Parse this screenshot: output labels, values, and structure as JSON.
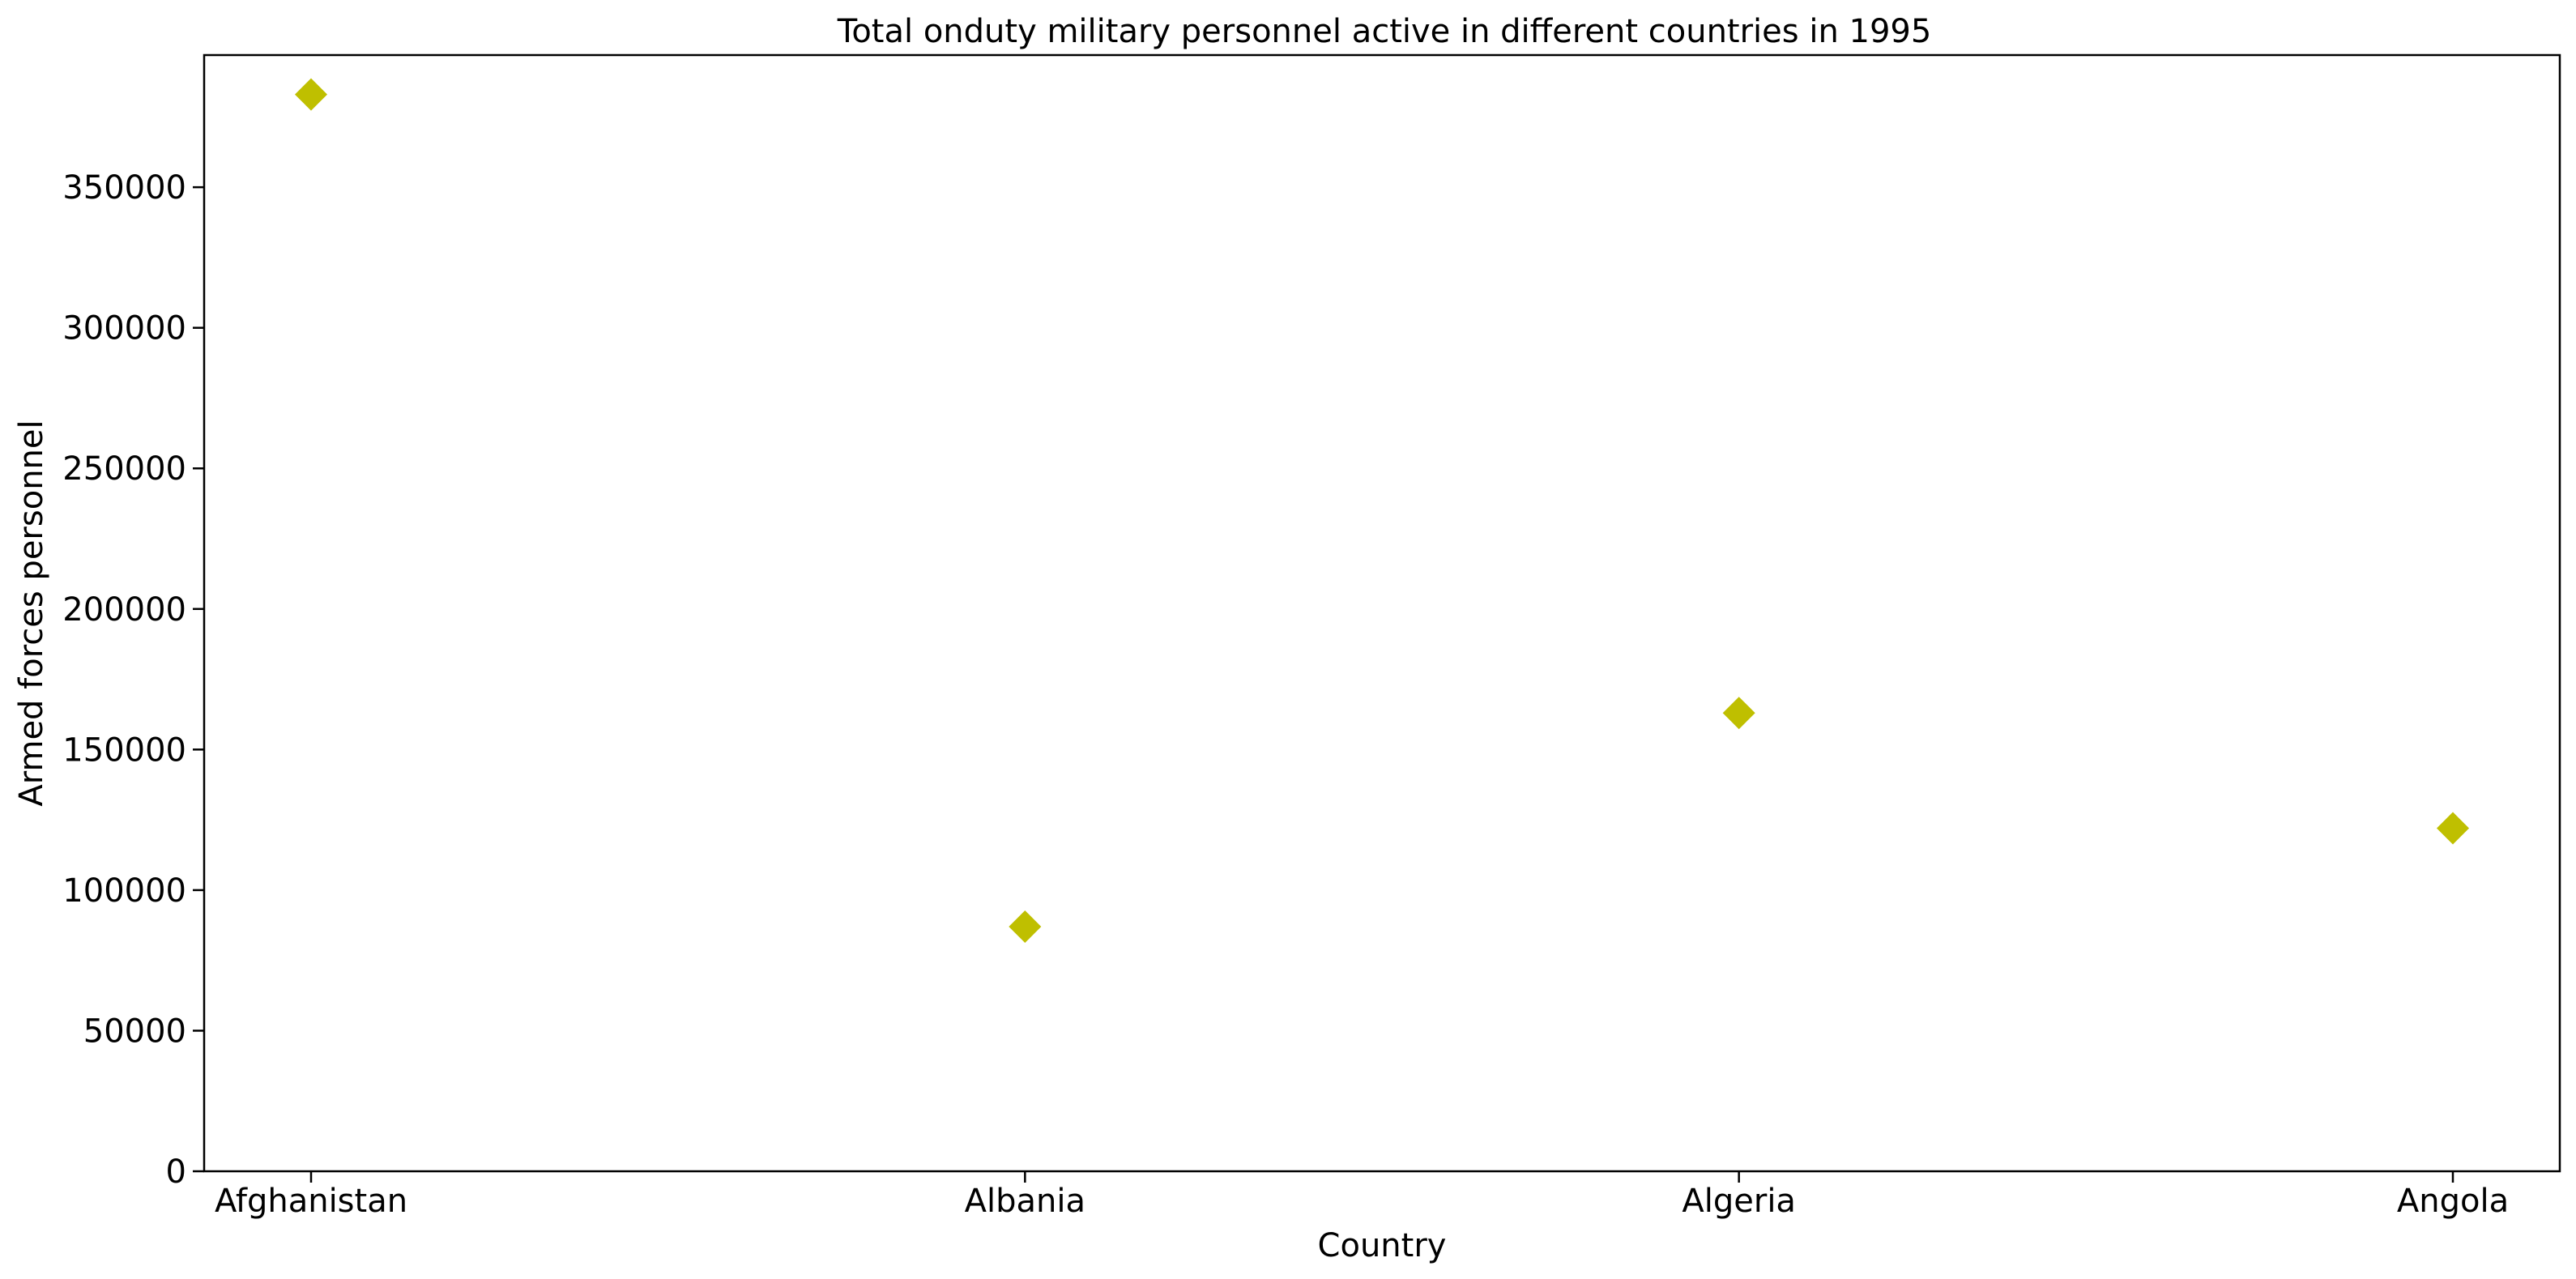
{
  "chart_data": {
    "type": "scatter",
    "title": "Total onduty military personnel active in different countries in 1995",
    "xlabel": "Country",
    "ylabel": "Armed forces personnel",
    "categories": [
      "Afghanistan",
      "Albania",
      "Algeria",
      "Angola"
    ],
    "series": [
      {
        "values": [
          383000,
          87000,
          163000,
          122000
        ],
        "color": "#bfbf00",
        "marker": "diamond"
      }
    ],
    "ylim": [
      0,
      397000
    ],
    "yticks": [
      0,
      50000,
      100000,
      150000,
      200000,
      250000,
      300000,
      350000
    ],
    "grid": false,
    "legend": "none"
  }
}
